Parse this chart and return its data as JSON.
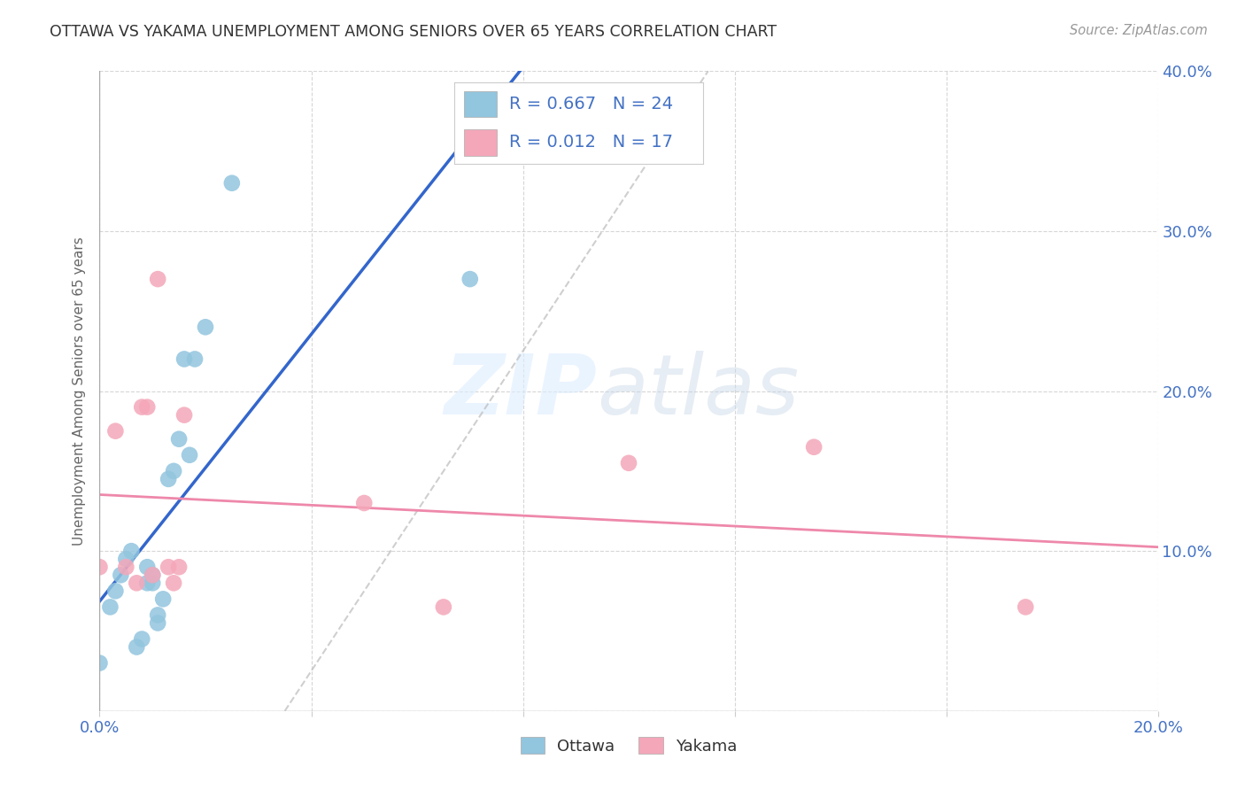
{
  "title": "OTTAWA VS YAKAMA UNEMPLOYMENT AMONG SENIORS OVER 65 YEARS CORRELATION CHART",
  "source": "Source: ZipAtlas.com",
  "ylabel": "Unemployment Among Seniors over 65 years",
  "xlim": [
    0.0,
    0.2
  ],
  "ylim": [
    0.0,
    0.4
  ],
  "xticks": [
    0.0,
    0.04,
    0.08,
    0.12,
    0.16,
    0.2
  ],
  "yticks": [
    0.0,
    0.1,
    0.2,
    0.3,
    0.4
  ],
  "ottawa_color": "#92C5DE",
  "yakama_color": "#F4A7B9",
  "ottawa_R": 0.667,
  "ottawa_N": 24,
  "yakama_R": 0.012,
  "yakama_N": 17,
  "ottawa_x": [
    0.0,
    0.002,
    0.003,
    0.004,
    0.005,
    0.006,
    0.007,
    0.008,
    0.009,
    0.009,
    0.01,
    0.01,
    0.011,
    0.011,
    0.012,
    0.013,
    0.014,
    0.015,
    0.016,
    0.017,
    0.018,
    0.02,
    0.025,
    0.07
  ],
  "ottawa_y": [
    0.03,
    0.065,
    0.075,
    0.085,
    0.095,
    0.1,
    0.04,
    0.045,
    0.08,
    0.09,
    0.08,
    0.085,
    0.055,
    0.06,
    0.07,
    0.145,
    0.15,
    0.17,
    0.22,
    0.16,
    0.22,
    0.24,
    0.33,
    0.27
  ],
  "yakama_x": [
    0.0,
    0.003,
    0.005,
    0.007,
    0.008,
    0.009,
    0.01,
    0.011,
    0.013,
    0.014,
    0.015,
    0.016,
    0.05,
    0.065,
    0.1,
    0.135,
    0.175
  ],
  "yakama_y": [
    0.09,
    0.175,
    0.09,
    0.08,
    0.19,
    0.19,
    0.085,
    0.27,
    0.09,
    0.08,
    0.09,
    0.185,
    0.13,
    0.065,
    0.155,
    0.165,
    0.065
  ],
  "watermark_zip": "ZIP",
  "watermark_atlas": "atlas",
  "grid_color": "#CCCCCC",
  "background_color": "#FFFFFF",
  "trend_blue_color": "#3366CC",
  "trend_pink_color": "#EE88AA",
  "trend_gray_color": "#BBBBBB",
  "tick_color": "#4472C4",
  "title_color": "#333333",
  "source_color": "#999999",
  "ylabel_color": "#666666"
}
